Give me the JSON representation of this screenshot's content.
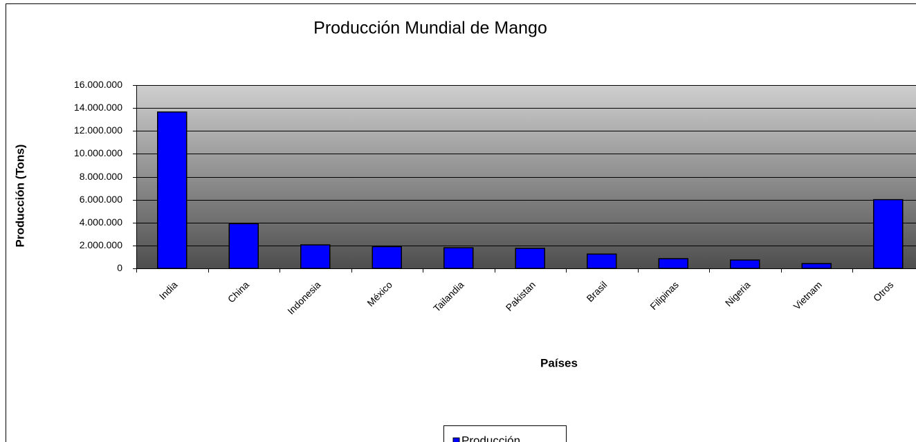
{
  "chart_data": {
    "type": "bar",
    "title": "Producción Mundial de Mango",
    "x_label": "Países",
    "y_label": "Producción (Tons)",
    "categories": [
      "India",
      "China",
      "Indonesia",
      "México",
      "Tailandia",
      "Pakistan",
      "Brasil",
      "Filipinas",
      "Nigeria",
      "Vietnam",
      "Otros"
    ],
    "series": [
      {
        "name": "Producción",
        "color": "#0000ff",
        "values": [
          13650000,
          3900000,
          2050000,
          1900000,
          1800000,
          1750000,
          1250000,
          850000,
          730000,
          420000,
          6000000
        ]
      }
    ],
    "ylim": [
      0,
      16000000
    ],
    "yticks": [
      0,
      {
        "value": 2000000,
        "label": "2.000.000"
      },
      {
        "value": 4000000,
        "label": "4.000.000"
      },
      {
        "value": 6000000,
        "label": "6.000.000"
      },
      {
        "value": 8000000,
        "label": "8.000.000"
      },
      {
        "value": 10000000,
        "label": "10.000.000"
      },
      {
        "value": 12000000,
        "label": "12.000.000"
      },
      {
        "value": 14000000,
        "label": "14.000.000"
      },
      {
        "value": 16000000,
        "label": "16.000.000"
      }
    ],
    "grid": true,
    "legend": "bottom"
  }
}
